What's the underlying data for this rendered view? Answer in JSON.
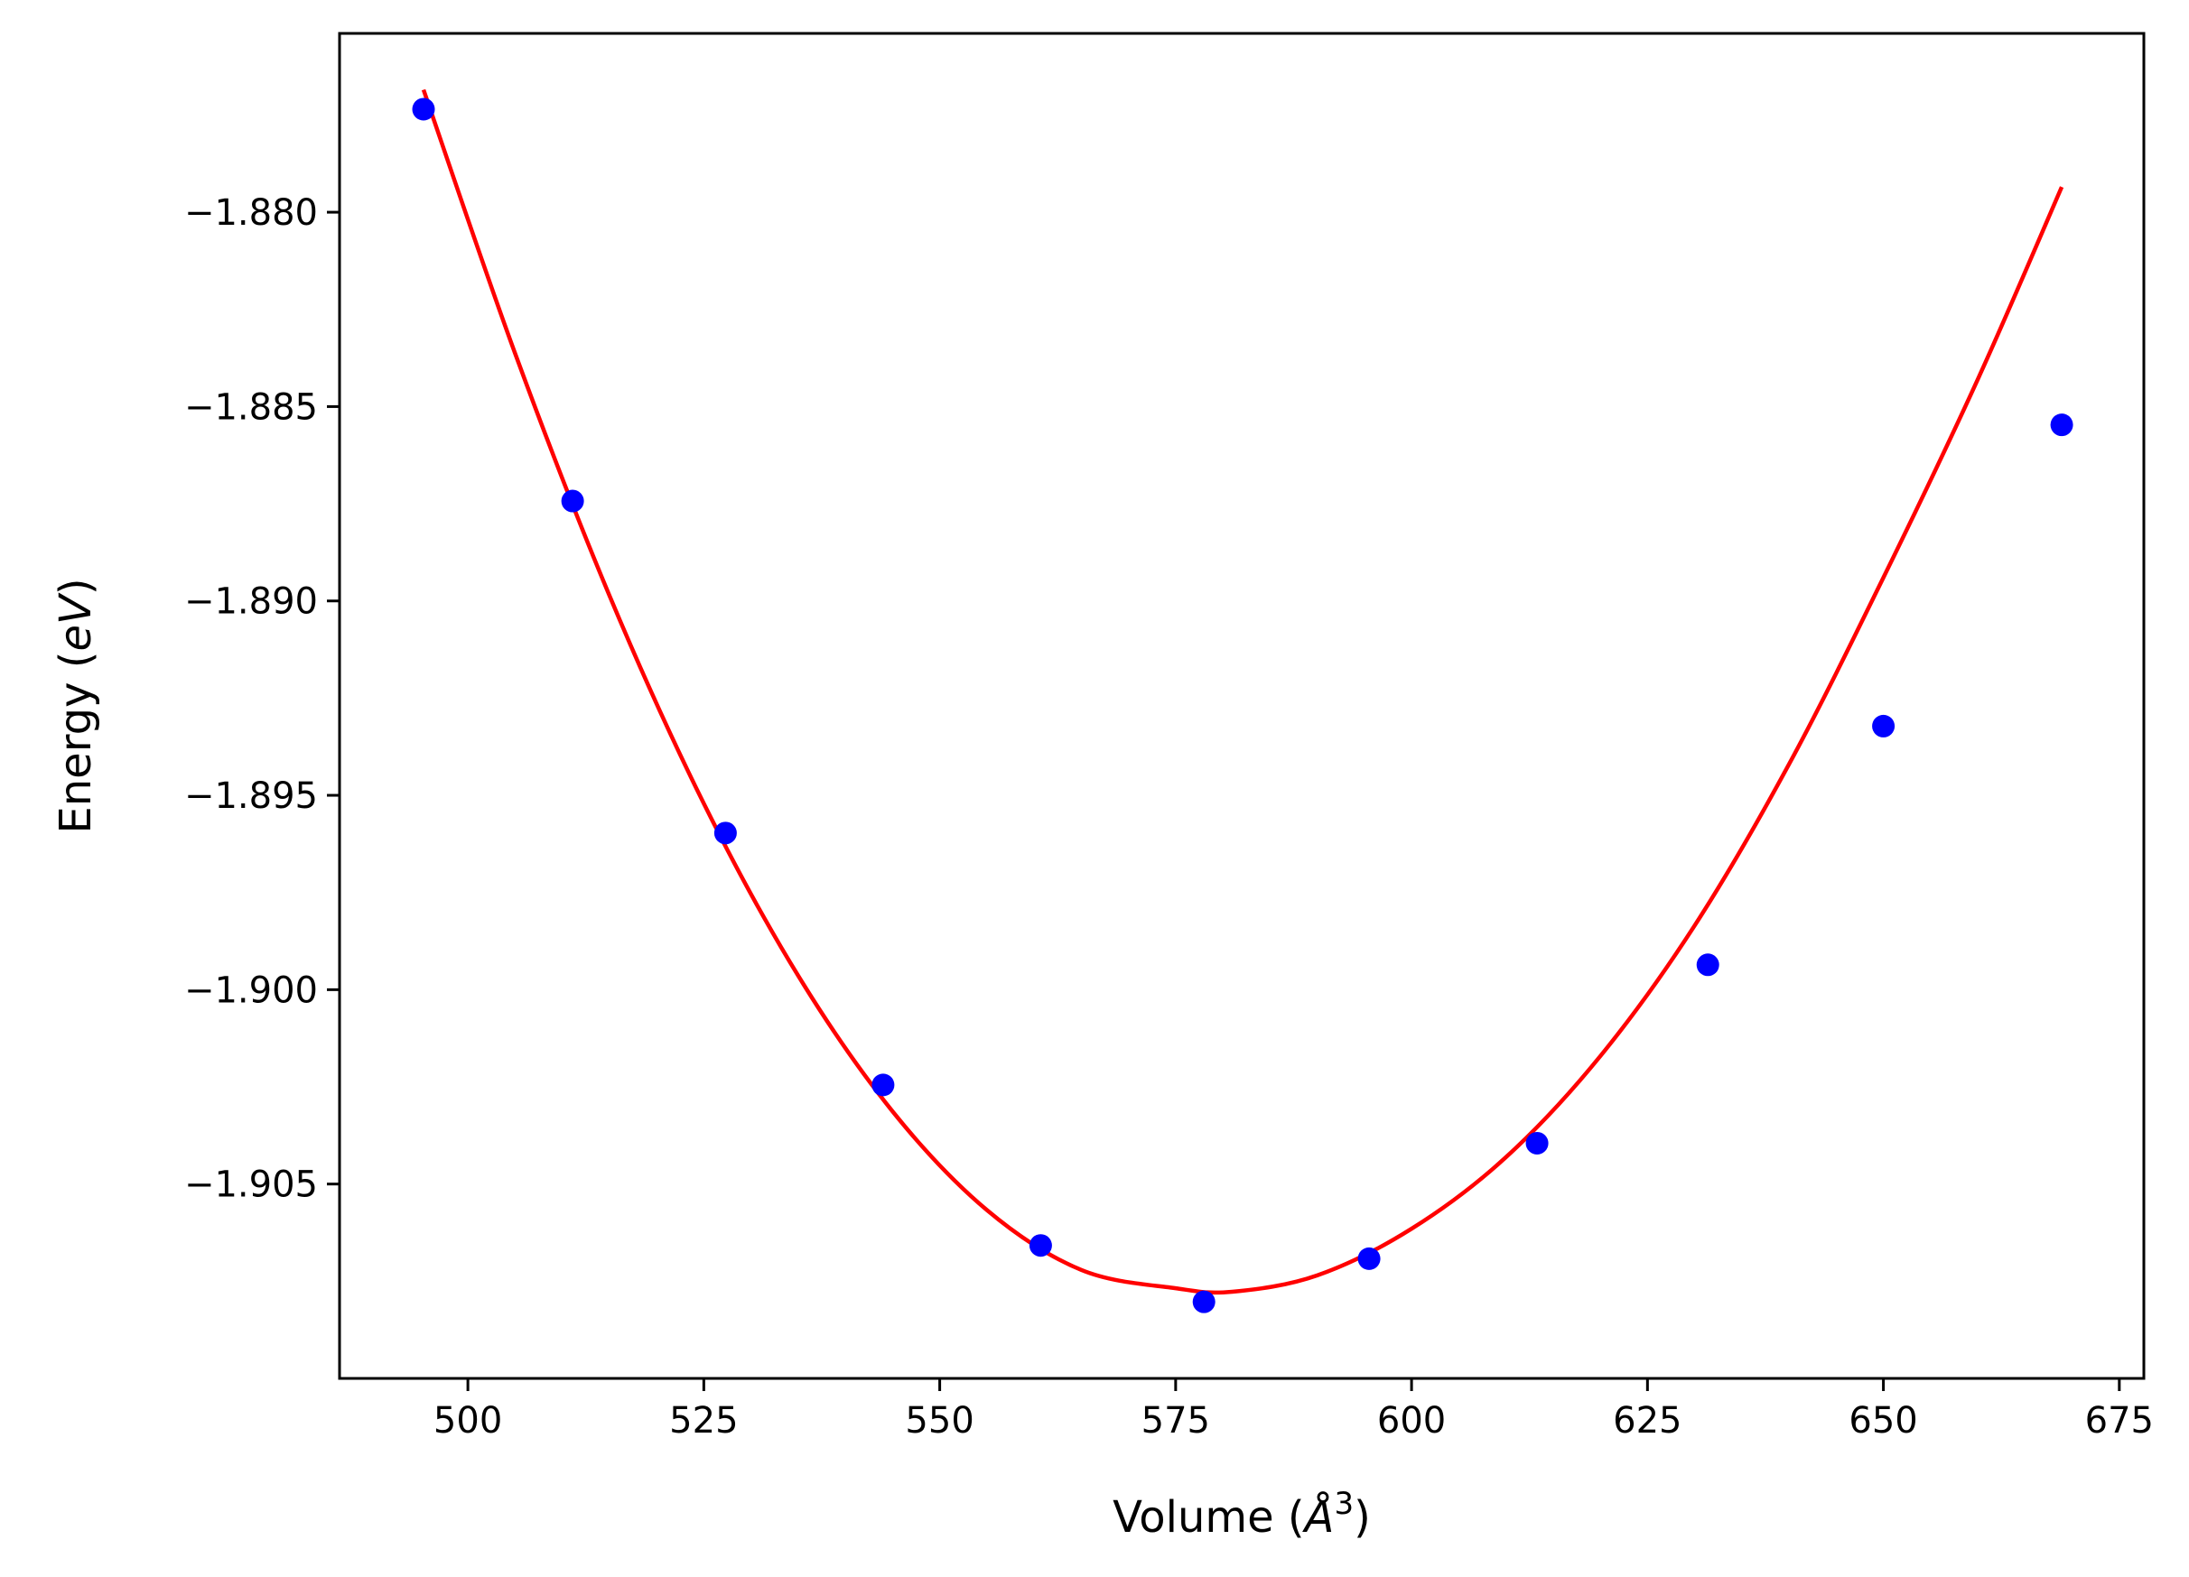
{
  "chart_data": {
    "type": "scatter",
    "title": "",
    "xlabel": {
      "prefix": "Volume (",
      "symbol": "Å",
      "superscript": "3",
      "suffix": ")"
    },
    "ylabel": {
      "prefix": "Energy (",
      "italic": "eV",
      "suffix": ")"
    },
    "xlim": [
      486.4,
      677.6
    ],
    "ylim": [
      -1.91,
      -1.8754
    ],
    "xticks": [
      500,
      525,
      550,
      575,
      600,
      625,
      650,
      675
    ],
    "xtick_labels": [
      "500",
      "525",
      "550",
      "575",
      "600",
      "625",
      "650",
      "675"
    ],
    "yticks": [
      -1.88,
      -1.885,
      -1.89,
      -1.895,
      -1.9,
      -1.905
    ],
    "ytick_labels": [
      "−1.880",
      "−1.885",
      "−1.890",
      "−1.895",
      "−1.900",
      "−1.905"
    ],
    "grid": false,
    "legend": "none",
    "series": [
      {
        "kind": "points",
        "color": "#0000ff",
        "x": [
          495.3,
          511.1,
          527.3,
          544.0,
          560.7,
          578.0,
          595.5,
          613.3,
          631.4,
          650.0,
          668.9
        ],
        "y": [
          -1.87735,
          -1.88743,
          -1.89597,
          -1.90245,
          -1.90658,
          -1.90803,
          -1.90692,
          -1.90395,
          -1.89936,
          -1.89322,
          -1.88547
        ]
      },
      {
        "kind": "fit-line",
        "color": "#ff0000",
        "x": [
          495.3,
          505.0,
          515.0,
          525.0,
          535.0,
          545.0,
          555.0,
          565.0,
          575.0,
          581.0,
          590.0,
          600.0,
          610.0,
          620.0,
          630.0,
          640.0,
          650.0,
          660.0,
          668.9
        ],
        "y": [
          -1.87685,
          -1.88363,
          -1.88986,
          -1.89521,
          -1.89964,
          -1.90313,
          -1.90567,
          -1.90721,
          -1.90768,
          -1.90777,
          -1.90735,
          -1.90615,
          -1.90431,
          -1.90171,
          -1.89835,
          -1.8942,
          -1.8894,
          -1.8843,
          -1.87935
        ]
      }
    ]
  }
}
